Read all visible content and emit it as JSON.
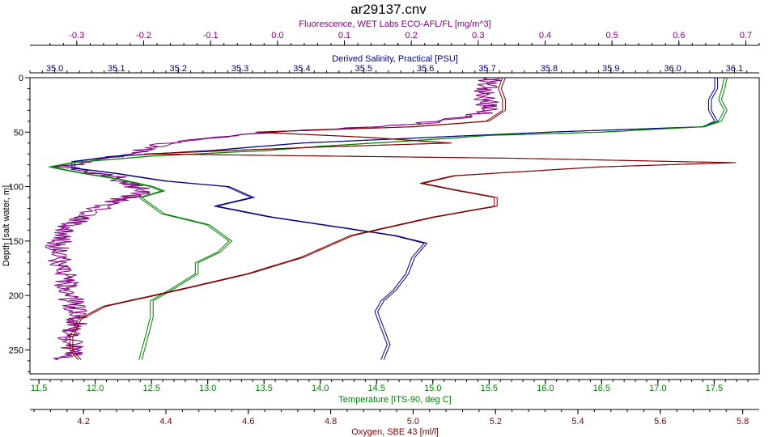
{
  "chart_data": {
    "type": "line",
    "title": "ar29137.cnv",
    "grid": false,
    "axes": {
      "depth": {
        "label": "Depth [salt water, m]",
        "range": [
          0,
          272
        ],
        "ticks": [
          0,
          50,
          100,
          150,
          200,
          250
        ],
        "inverted": true,
        "color": "#000000"
      },
      "fluorescence": {
        "label": "Fluorescence, WET Labs ECO-AFL/FL [mg/m^3]",
        "range": [
          -0.37,
          0.72
        ],
        "ticks": [
          -0.3,
          -0.2,
          -0.1,
          0.0,
          0.1,
          0.2,
          0.3,
          0.4,
          0.5,
          0.6,
          0.7
        ],
        "tick_labels": [
          "-0.3",
          "-0.2",
          "-0.1",
          "0.0",
          "0.1",
          "0.2",
          "0.3",
          "0.4",
          "0.5",
          "0.6",
          "0.7"
        ],
        "position": "top-1",
        "color": "#800080"
      },
      "salinity": {
        "label": "Derived Salinity, Practical [PSU]",
        "range": [
          34.96,
          36.14
        ],
        "ticks": [
          35.0,
          35.1,
          35.2,
          35.3,
          35.4,
          35.5,
          35.6,
          35.7,
          35.8,
          35.9,
          36.0,
          36.1
        ],
        "tick_labels": [
          "35.0",
          "35.1",
          "35.2",
          "35.3",
          "35.4",
          "35.5",
          "35.6",
          "35.7",
          "35.8",
          "35.9",
          "36.0",
          "36.1"
        ],
        "position": "top-2",
        "color": "#000080"
      },
      "temperature": {
        "label": "Temperature [ITS-90, deg C]",
        "range": [
          11.42,
          17.9
        ],
        "ticks": [
          11.5,
          12.0,
          12.5,
          13.0,
          13.5,
          14.0,
          14.5,
          15.0,
          15.5,
          16.0,
          16.5,
          17.0,
          17.5
        ],
        "tick_labels": [
          "11.5",
          "12.0",
          "12.5",
          "13.0",
          "13.5",
          "14.0",
          "14.5",
          "15.0",
          "15.5",
          "16.0",
          "16.5",
          "17.0",
          "17.5"
        ],
        "position": "bottom-1",
        "color": "#008000"
      },
      "oxygen": {
        "label": "Oxygen, SBE 43 [ml/l]",
        "range": [
          4.07,
          5.84
        ],
        "ticks": [
          4.2,
          4.4,
          4.6,
          4.8,
          5.0,
          5.2,
          5.4,
          5.6,
          5.8
        ],
        "tick_labels": [
          "4.2",
          "4.4",
          "4.6",
          "4.8",
          "5.0",
          "5.2",
          "5.4",
          "5.6",
          "5.8"
        ],
        "position": "bottom-2",
        "color": "#800000"
      }
    },
    "series": [
      {
        "axis": "fluorescence",
        "color": "#800080",
        "noise": 0.018,
        "points": [
          [
            0.32,
            0
          ],
          [
            0.31,
            10
          ],
          [
            0.31,
            20
          ],
          [
            0.32,
            30
          ],
          [
            0.25,
            40
          ],
          [
            0.15,
            45
          ],
          [
            0.05,
            48
          ],
          [
            -0.05,
            52
          ],
          [
            -0.12,
            57
          ],
          [
            -0.18,
            62
          ],
          [
            -0.22,
            70
          ],
          [
            -0.27,
            75
          ],
          [
            -0.32,
            82
          ],
          [
            -0.25,
            90
          ],
          [
            -0.22,
            98
          ],
          [
            -0.2,
            105
          ],
          [
            -0.25,
            115
          ],
          [
            -0.28,
            125
          ],
          [
            -0.32,
            140
          ],
          [
            -0.33,
            160
          ],
          [
            -0.32,
            180
          ],
          [
            -0.31,
            200
          ],
          [
            -0.3,
            220
          ],
          [
            -0.31,
            240
          ],
          [
            -0.3,
            255
          ],
          [
            -0.33,
            259
          ]
        ]
      },
      {
        "axis": "salinity",
        "color": "#000080",
        "noise": 0.0,
        "points": [
          [
            36.07,
            0
          ],
          [
            36.07,
            10
          ],
          [
            36.06,
            20
          ],
          [
            36.06,
            30
          ],
          [
            36.07,
            40
          ],
          [
            36.05,
            45
          ],
          [
            35.95,
            47
          ],
          [
            35.8,
            50
          ],
          [
            35.6,
            55
          ],
          [
            35.4,
            60
          ],
          [
            35.25,
            67
          ],
          [
            35.1,
            72
          ],
          [
            35.03,
            77
          ],
          [
            35.03,
            83
          ],
          [
            35.1,
            88
          ],
          [
            35.18,
            95
          ],
          [
            35.28,
            100
          ],
          [
            35.32,
            110
          ],
          [
            35.26,
            118
          ],
          [
            35.35,
            128
          ],
          [
            35.55,
            145
          ],
          [
            35.6,
            152
          ],
          [
            35.58,
            165
          ],
          [
            35.57,
            180
          ],
          [
            35.55,
            195
          ],
          [
            35.53,
            205
          ],
          [
            35.52,
            215
          ],
          [
            35.53,
            230
          ],
          [
            35.54,
            245
          ],
          [
            35.53,
            259
          ]
        ]
      },
      {
        "axis": "temperature",
        "color": "#008000",
        "noise": 0.0,
        "points": [
          [
            17.6,
            0
          ],
          [
            17.58,
            10
          ],
          [
            17.55,
            20
          ],
          [
            17.6,
            30
          ],
          [
            17.55,
            40
          ],
          [
            17.4,
            45
          ],
          [
            16.5,
            50
          ],
          [
            15.5,
            53
          ],
          [
            14.8,
            58
          ],
          [
            14.0,
            63
          ],
          [
            13.5,
            67
          ],
          [
            12.5,
            72
          ],
          [
            11.8,
            78
          ],
          [
            11.6,
            82
          ],
          [
            11.9,
            88
          ],
          [
            12.2,
            93
          ],
          [
            12.5,
            100
          ],
          [
            12.6,
            104
          ],
          [
            12.4,
            110
          ],
          [
            12.6,
            125
          ],
          [
            13.0,
            135
          ],
          [
            13.2,
            150
          ],
          [
            13.1,
            160
          ],
          [
            12.9,
            170
          ],
          [
            12.9,
            180
          ],
          [
            12.7,
            193
          ],
          [
            12.5,
            205
          ],
          [
            12.5,
            220
          ],
          [
            12.45,
            240
          ],
          [
            12.4,
            259
          ]
        ]
      },
      {
        "axis": "oxygen",
        "color": "#800000",
        "noise": 0.0,
        "points": [
          [
            5.22,
            0
          ],
          [
            5.21,
            10
          ],
          [
            5.22,
            20
          ],
          [
            5.22,
            30
          ],
          [
            5.18,
            40
          ],
          [
            5.0,
            45
          ],
          [
            4.62,
            50
          ],
          [
            4.9,
            55
          ],
          [
            5.09,
            60
          ],
          [
            4.75,
            64
          ],
          [
            4.35,
            70
          ],
          [
            5.25,
            74
          ],
          [
            5.78,
            78
          ],
          [
            5.45,
            82
          ],
          [
            5.1,
            90
          ],
          [
            5.02,
            97
          ],
          [
            5.1,
            103
          ],
          [
            5.2,
            110
          ],
          [
            5.2,
            118
          ],
          [
            5.05,
            128
          ],
          [
            4.85,
            145
          ],
          [
            4.73,
            165
          ],
          [
            4.6,
            180
          ],
          [
            4.43,
            195
          ],
          [
            4.25,
            210
          ],
          [
            4.19,
            222
          ],
          [
            4.17,
            238
          ],
          [
            4.17,
            250
          ],
          [
            4.19,
            259
          ]
        ]
      }
    ]
  }
}
